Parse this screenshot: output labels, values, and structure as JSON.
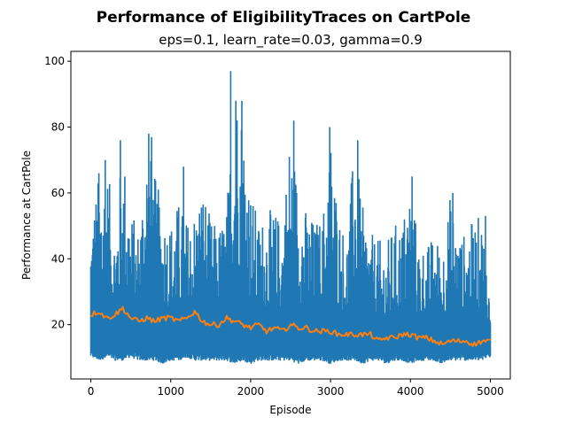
{
  "chart_data": {
    "type": "line",
    "title": "Performance of EligibilityTraces on CartPole",
    "subtitle": "eps=0.1, learn_rate=0.03, gamma=0.9",
    "xlabel": "Episode",
    "ylabel": "Performance at CartPole",
    "xlim": [
      -250,
      5250
    ],
    "ylim": [
      3.5,
      103
    ],
    "xticks": [
      0,
      1000,
      2000,
      3000,
      4000,
      5000
    ],
    "yticks": [
      20,
      40,
      60,
      80,
      100
    ],
    "grid": false,
    "legend": "none",
    "episodes": 5000,
    "raw_range": [
      8,
      97
    ],
    "raw_peaks": [
      {
        "x": 100,
        "y": 66
      },
      {
        "x": 180,
        "y": 70
      },
      {
        "x": 370,
        "y": 76
      },
      {
        "x": 725,
        "y": 78
      },
      {
        "x": 760,
        "y": 77
      },
      {
        "x": 1160,
        "y": 68
      },
      {
        "x": 1750,
        "y": 97
      },
      {
        "x": 1815,
        "y": 88
      },
      {
        "x": 1890,
        "y": 88
      },
      {
        "x": 2540,
        "y": 82
      },
      {
        "x": 2990,
        "y": 80
      },
      {
        "x": 3340,
        "y": 76
      },
      {
        "x": 4020,
        "y": 65
      },
      {
        "x": 4530,
        "y": 60
      },
      {
        "x": 4940,
        "y": 53
      }
    ],
    "series": [
      {
        "color": "#1f77b4",
        "x": [
          0,
          100,
          200,
          300,
          400,
          500,
          600,
          700,
          800,
          900,
          1000,
          1100,
          1200,
          1300,
          1400,
          1500,
          1600,
          1700,
          1800,
          1900,
          2000,
          2100,
          2200,
          2300,
          2400,
          2500,
          2600,
          2700,
          2800,
          2900,
          3000,
          3100,
          3200,
          3300,
          3400,
          3500,
          3600,
          3700,
          3800,
          3900,
          4000,
          4100,
          4200,
          4300,
          4400,
          4500,
          4600,
          4700,
          4800,
          4900,
          5000
        ],
        "max": [
          54,
          66,
          70,
          50,
          76,
          55,
          50,
          78,
          66,
          56,
          52,
          58,
          52,
          56,
          64,
          52,
          50,
          56,
          97,
          88,
          62,
          52,
          55,
          55,
          52,
          82,
          62,
          55,
          52,
          53,
          80,
          56,
          46,
          76,
          56,
          48,
          46,
          45,
          51,
          52,
          65,
          46,
          44,
          48,
          44,
          60,
          48,
          48,
          53,
          53,
          30
        ],
        "min": [
          10,
          9,
          10,
          9,
          9,
          10,
          9,
          9,
          9,
          8,
          9,
          9,
          10,
          9,
          9,
          9,
          9,
          9,
          8,
          9,
          8,
          9,
          9,
          9,
          9,
          9,
          8,
          9,
          9,
          9,
          8,
          9,
          9,
          9,
          8,
          9,
          9,
          8,
          9,
          9,
          8,
          9,
          9,
          9,
          8,
          9,
          9,
          9,
          9,
          9,
          10
        ]
      },
      {
        "color": "#ff7f0e",
        "x": [
          0,
          100,
          200,
          300,
          400,
          500,
          600,
          700,
          800,
          900,
          1000,
          1100,
          1200,
          1300,
          1400,
          1500,
          1600,
          1700,
          1800,
          1900,
          2000,
          2100,
          2200,
          2300,
          2400,
          2500,
          2600,
          2700,
          2800,
          2900,
          3000,
          3100,
          3200,
          3300,
          3400,
          3500,
          3600,
          3700,
          3800,
          3900,
          4000,
          4100,
          4200,
          4300,
          4400,
          4500,
          4600,
          4700,
          4800,
          4900,
          5000
        ],
        "values": [
          23,
          24,
          22,
          23,
          25,
          22,
          21,
          22,
          21,
          22,
          22,
          21,
          22,
          24,
          21,
          20,
          20,
          22,
          21,
          20,
          19,
          20,
          18,
          19,
          18,
          20,
          19,
          19,
          18,
          18,
          18,
          17,
          17,
          17,
          17,
          17,
          15,
          16,
          16,
          17,
          17,
          16,
          16,
          15,
          14,
          15,
          15,
          15,
          14,
          15,
          15
        ]
      }
    ]
  }
}
